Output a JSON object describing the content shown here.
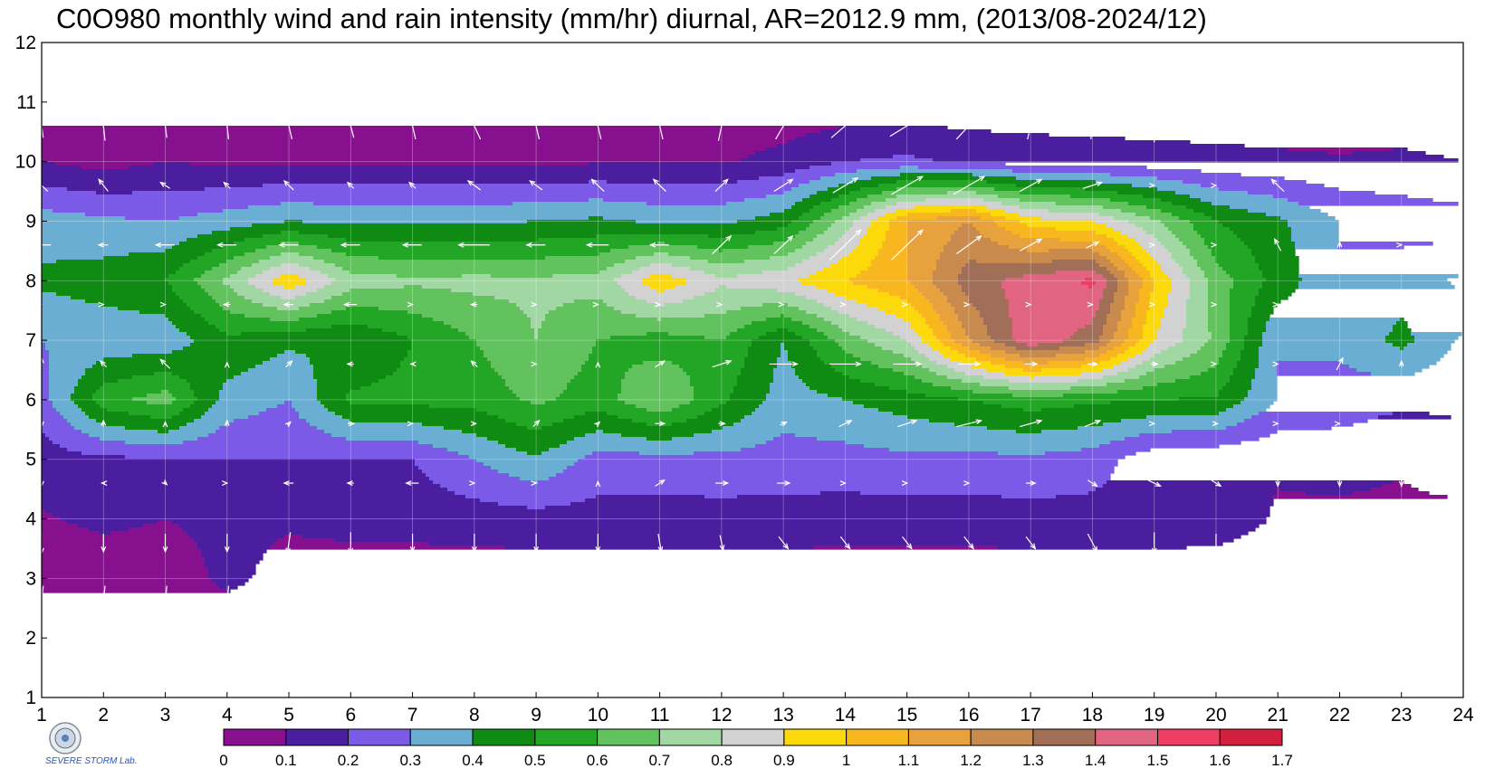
{
  "title": "C0O980 monthly wind and rain intensity (mm/hr) diurnal, AR=2012.9 mm, (2013/08-2024/12)",
  "logo": {
    "name": "severe-storm-lab-logo",
    "text": "SEVERE STORM Lab."
  },
  "chart_data": {
    "type": "heatmap",
    "subtype": "filled-contour-with-wind-vectors",
    "title": "C0O980 monthly wind and rain intensity (mm/hr) diurnal, AR=2012.9 mm, (2013/08-2024/12)",
    "xlabel": "",
    "ylabel": "",
    "x_ticks": [
      1,
      2,
      3,
      4,
      5,
      6,
      7,
      8,
      9,
      10,
      11,
      12,
      13,
      14,
      15,
      16,
      17,
      18,
      19,
      20,
      21,
      22,
      23,
      24
    ],
    "y_ticks": [
      1,
      2,
      3,
      4,
      5,
      6,
      7,
      8,
      9,
      10,
      11,
      12
    ],
    "xlim": [
      1,
      24
    ],
    "ylim": [
      1,
      12
    ],
    "grid": true,
    "colorbar": {
      "labels": [
        "0",
        "0.1",
        "0.2",
        "0.3",
        "0.4",
        "0.5",
        "0.6",
        "0.7",
        "0.8",
        "0.9",
        "1",
        "1.1",
        "1.2",
        "1.3",
        "1.4",
        "1.5",
        "1.6",
        "1.7"
      ],
      "colors": [
        "#87108f",
        "#4a1e9f",
        "#7a5ae6",
        "#6aaed3",
        "#0f8a13",
        "#23a625",
        "#62c35e",
        "#a1d7a2",
        "#d2d2d2",
        "#fbd90b",
        "#f8b71f",
        "#e7a23d",
        "#c98a4d",
        "#a16e58",
        "#e16480",
        "#ef3d63",
        "#d21f3e"
      ],
      "placement": "bottom"
    },
    "contour_fill": {
      "month_rows": [
        1,
        2,
        3,
        4,
        5,
        6,
        7,
        8,
        9,
        10,
        11,
        12
      ],
      "hour_cols": [
        1,
        2,
        3,
        4,
        5,
        6,
        7,
        8,
        9,
        10,
        11,
        12,
        13,
        14,
        15,
        16,
        17,
        18,
        19,
        20,
        21,
        22,
        23,
        24
      ],
      "rain_mm_per_hr": [
        [
          0.02,
          0.03,
          0.03,
          0.03,
          0.03,
          0.03,
          0.03,
          0.04,
          0.03,
          0.03,
          0.03,
          0.03,
          0.03,
          0.03,
          0.03,
          0.03,
          0.03,
          0.03,
          0.03,
          0.03,
          0.03,
          0.03,
          0.03,
          0.03
        ],
        [
          0.04,
          0.03,
          0.03,
          0.03,
          0.03,
          0.03,
          0.03,
          0.03,
          0.03,
          0.03,
          0.03,
          0.03,
          0.03,
          0.03,
          0.03,
          0.03,
          0.03,
          0.03,
          0.03,
          0.03,
          0.03,
          0.03,
          0.03,
          0.03
        ],
        [
          0.05,
          0.04,
          0.05,
          0.12,
          0.07,
          0.05,
          0.04,
          0.04,
          0.04,
          0.04,
          0.04,
          0.04,
          0.04,
          0.04,
          0.04,
          0.04,
          0.04,
          0.04,
          0.04,
          0.04,
          0.04,
          0.04,
          0.04,
          0.05
        ],
        [
          0.09,
          0.12,
          0.1,
          0.12,
          0.11,
          0.13,
          0.14,
          0.15,
          0.16,
          0.16,
          0.16,
          0.16,
          0.16,
          0.15,
          0.15,
          0.15,
          0.16,
          0.16,
          0.16,
          0.15,
          0.09,
          0.08,
          0.08,
          0.07
        ],
        [
          0.15,
          0.18,
          0.19,
          0.2,
          0.2,
          0.19,
          0.2,
          0.3,
          0.39,
          0.26,
          0.26,
          0.27,
          0.26,
          0.26,
          0.28,
          0.27,
          0.28,
          0.25,
          0.13,
          0.12,
          0.11,
          0.13,
          0.11,
          0.16
        ],
        [
          0.26,
          0.56,
          0.65,
          0.36,
          0.3,
          0.52,
          0.53,
          0.54,
          0.62,
          0.55,
          0.7,
          0.52,
          0.35,
          0.4,
          0.45,
          0.5,
          0.55,
          0.52,
          0.5,
          0.49,
          0.3,
          0.26,
          0.22,
          0.22
        ],
        [
          0.3,
          0.33,
          0.33,
          0.48,
          0.42,
          0.4,
          0.5,
          0.6,
          0.7,
          0.6,
          0.55,
          0.6,
          0.4,
          0.65,
          0.8,
          1.2,
          1.48,
          1.35,
          0.9,
          0.68,
          0.3,
          0.32,
          0.43,
          0.28
        ],
        [
          0.42,
          0.45,
          0.5,
          0.72,
          0.98,
          0.75,
          0.72,
          0.73,
          0.72,
          0.74,
          0.98,
          0.82,
          0.88,
          1.0,
          1.1,
          1.35,
          1.45,
          1.52,
          1.0,
          0.65,
          0.46,
          0.3,
          0.35,
          0.42
        ],
        [
          0.35,
          0.32,
          0.3,
          0.35,
          0.4,
          0.38,
          0.38,
          0.38,
          0.4,
          0.42,
          0.38,
          0.38,
          0.45,
          0.75,
          1.1,
          1.2,
          0.95,
          0.9,
          0.72,
          0.5,
          0.42,
          0.3,
          0.26,
          0.24
        ],
        [
          0.1,
          0.06,
          0.1,
          0.08,
          0.08,
          0.08,
          0.08,
          0.08,
          0.08,
          0.09,
          0.09,
          0.09,
          0.13,
          0.2,
          0.22,
          0.18,
          0.16,
          0.15,
          0.14,
          0.13,
          0.12,
          0.11,
          0.12,
          0.1
        ],
        [
          0.03,
          0.03,
          0.03,
          0.03,
          0.03,
          0.03,
          0.03,
          0.03,
          0.03,
          0.03,
          0.03,
          0.03,
          0.03,
          0.03,
          0.03,
          0.03,
          0.03,
          0.03,
          0.03,
          0.03,
          0.03,
          0.03,
          0.03,
          0.03
        ],
        [
          0.03,
          0.03,
          0.03,
          0.03,
          0.03,
          0.03,
          0.03,
          0.03,
          0.03,
          0.03,
          0.03,
          0.03,
          0.03,
          0.03,
          0.03,
          0.03,
          0.03,
          0.03,
          0.03,
          0.03,
          0.03,
          0.03,
          0.03,
          0.03
        ]
      ]
    },
    "wind_vectors": {
      "row_months": [
        1.6,
        2.6,
        3.6,
        4.6,
        5.6,
        6.6,
        7.6,
        8.6,
        9.6,
        10.6,
        11.6
      ],
      "dx": [
        [
          0,
          0,
          0,
          0,
          0,
          0,
          0,
          0,
          0,
          0,
          0,
          0,
          0,
          0,
          0,
          0,
          0,
          0,
          0,
          0,
          0,
          0,
          0,
          0
        ],
        [
          -0.05,
          -0.05,
          -0.05,
          -0.05,
          -0.05,
          -0.05,
          -0.05,
          -0.04,
          -0.05,
          -0.05,
          -0.03,
          0.05,
          0.1,
          0.1,
          0.1,
          0.05,
          0.05,
          0.05,
          0,
          0,
          0,
          0,
          0,
          -0.05
        ],
        [
          0,
          0,
          0,
          0,
          -0.05,
          0,
          0,
          0,
          0,
          0,
          0.05,
          0.05,
          0.15,
          0.15,
          0.15,
          0.15,
          0.15,
          0.15,
          0,
          0,
          0,
          0,
          0,
          0
        ],
        [
          0,
          -0.05,
          0.05,
          0,
          -0.15,
          -0.1,
          -0.2,
          0,
          0,
          0,
          0.15,
          0.2,
          0.2,
          0,
          0,
          0,
          0.15,
          0.15,
          0.2,
          0.15,
          0,
          0,
          0,
          0.05
        ],
        [
          0,
          0,
          0,
          0,
          0.05,
          0.1,
          0,
          0.05,
          0.1,
          0.05,
          0.15,
          0.1,
          0.1,
          0.2,
          0.3,
          0.4,
          0.35,
          0.25,
          0,
          0.05,
          0,
          0,
          0,
          0
        ],
        [
          0,
          -0.1,
          -0.15,
          0,
          0.1,
          -0.1,
          -0.05,
          -0.1,
          0,
          0,
          0.15,
          0.3,
          0.45,
          0.5,
          0.45,
          0.35,
          0.2,
          0.15,
          0.1,
          0,
          0,
          0.1,
          0,
          0
        ],
        [
          0,
          0,
          0,
          -0.1,
          -0.15,
          -0.2,
          0,
          -0.1,
          0,
          0,
          0,
          0,
          0,
          0,
          0,
          0,
          0,
          0,
          0,
          0,
          0,
          0,
          0,
          0
        ],
        [
          -0.3,
          -0.15,
          -0.3,
          -0.3,
          -0.3,
          -0.3,
          -0.3,
          -0.5,
          -0.3,
          -0.35,
          -0.3,
          0.3,
          0.3,
          0.5,
          0.5,
          0.4,
          0.35,
          0.2,
          0,
          0,
          -0.1,
          0,
          0,
          -0.1
        ],
        [
          -0.2,
          -0.15,
          -0.15,
          -0.1,
          -0.15,
          -0.1,
          -0.1,
          -0.2,
          -0.2,
          -0.2,
          -0.2,
          0.2,
          0.3,
          0.4,
          0.5,
          0.5,
          0.35,
          0.3,
          0,
          0,
          -0.2,
          -0.2,
          -0.2,
          -0.2
        ],
        [
          -0.05,
          -0.05,
          -0.05,
          -0.05,
          -0.1,
          -0.1,
          -0.1,
          -0.2,
          -0.1,
          -0.1,
          -0.1,
          0.1,
          0.25,
          0.45,
          0.55,
          0.4,
          0.1,
          0.05,
          0,
          0,
          0,
          0,
          0,
          -0.05
        ],
        [
          -0.05,
          -0.05,
          -0.05,
          -0.05,
          -0.05,
          -0.05,
          -0.05,
          -0.1,
          -0.1,
          -0.1,
          -0.1,
          0.05,
          0.1,
          0.15,
          0.15,
          0.05,
          0.05,
          0,
          0,
          0,
          0,
          0,
          0,
          -0.05
        ]
      ],
      "dy": [
        [
          -0.6,
          -0.6,
          -0.6,
          -0.6,
          -0.6,
          -0.6,
          -0.6,
          -0.6,
          -0.6,
          -0.6,
          -0.6,
          -0.6,
          -0.6,
          -0.6,
          -0.6,
          -0.6,
          -0.6,
          -0.6,
          -0.6,
          -0.6,
          -0.6,
          -0.6,
          -0.6,
          -0.6
        ],
        [
          -0.55,
          -0.55,
          -0.55,
          -0.55,
          -0.55,
          -0.55,
          -0.55,
          -0.55,
          -0.55,
          -0.55,
          -0.55,
          -0.55,
          -0.5,
          -0.5,
          -0.5,
          -0.55,
          -0.55,
          -0.55,
          -0.55,
          -0.55,
          -0.55,
          -0.55,
          -0.55,
          -0.55
        ],
        [
          -0.35,
          -0.3,
          -0.3,
          -0.3,
          -0.35,
          -0.35,
          -0.3,
          -0.3,
          -0.3,
          -0.3,
          -0.3,
          -0.25,
          -0.2,
          -0.2,
          -0.2,
          -0.2,
          -0.2,
          -0.3,
          -0.35,
          -0.3,
          -0.3,
          -0.3,
          -0.3,
          -0.3
        ],
        [
          -0.1,
          0,
          -0.05,
          0,
          0,
          0,
          0,
          0,
          0,
          0.05,
          0.1,
          0,
          0,
          0,
          0,
          0,
          0,
          -0.1,
          -0.1,
          -0.1,
          -0.1,
          -0.1,
          -0.1,
          -0.1
        ],
        [
          -0.1,
          0.1,
          0.05,
          0.1,
          0.05,
          0,
          0,
          0,
          0.1,
          0.05,
          0,
          0,
          0.05,
          0.1,
          0.1,
          0.1,
          0.1,
          0.1,
          0,
          0,
          0,
          0,
          0,
          0.05
        ],
        [
          0.2,
          0.1,
          0.15,
          0.05,
          0.1,
          0,
          0,
          0.1,
          0,
          0.05,
          0.1,
          0.1,
          0,
          0,
          0,
          0,
          0,
          0,
          0,
          0,
          0,
          0.2,
          0.1,
          0
        ],
        [
          0,
          0,
          0,
          0,
          0,
          0,
          0,
          0,
          0,
          0,
          0,
          0,
          0,
          0,
          0,
          0,
          0,
          0,
          0,
          0,
          0,
          0,
          0,
          0
        ],
        [
          0,
          0,
          0,
          0,
          0,
          0,
          0,
          0,
          0,
          0,
          0,
          0.3,
          0.3,
          0.5,
          0.5,
          0.3,
          0.2,
          0.1,
          0,
          0,
          0.2,
          0.1,
          0,
          0
        ],
        [
          0.2,
          0.2,
          0.1,
          0.1,
          0.15,
          0.1,
          0.1,
          0.15,
          0.15,
          0.2,
          0.2,
          0.2,
          0.2,
          0.25,
          0.3,
          0.3,
          0.2,
          0.1,
          0,
          0,
          0.2,
          0.1,
          0.1,
          0.1
        ],
        [
          0.4,
          0.5,
          0.4,
          0.45,
          0.45,
          0.4,
          0.45,
          0.45,
          0.45,
          0.45,
          0.45,
          0.5,
          0.45,
          0.4,
          0.35,
          0.45,
          0.45,
          0.45,
          0.55,
          0.55,
          0.55,
          0.55,
          0.55,
          0.5
        ],
        [
          0.55,
          0.55,
          0.55,
          0.55,
          0.55,
          0.55,
          0.55,
          0.55,
          0.55,
          0.55,
          0.55,
          0.55,
          0.55,
          0.55,
          0.55,
          0.55,
          0.55,
          0.55,
          0.55,
          0.55,
          0.55,
          0.55,
          0.55,
          0.55
        ]
      ]
    }
  }
}
